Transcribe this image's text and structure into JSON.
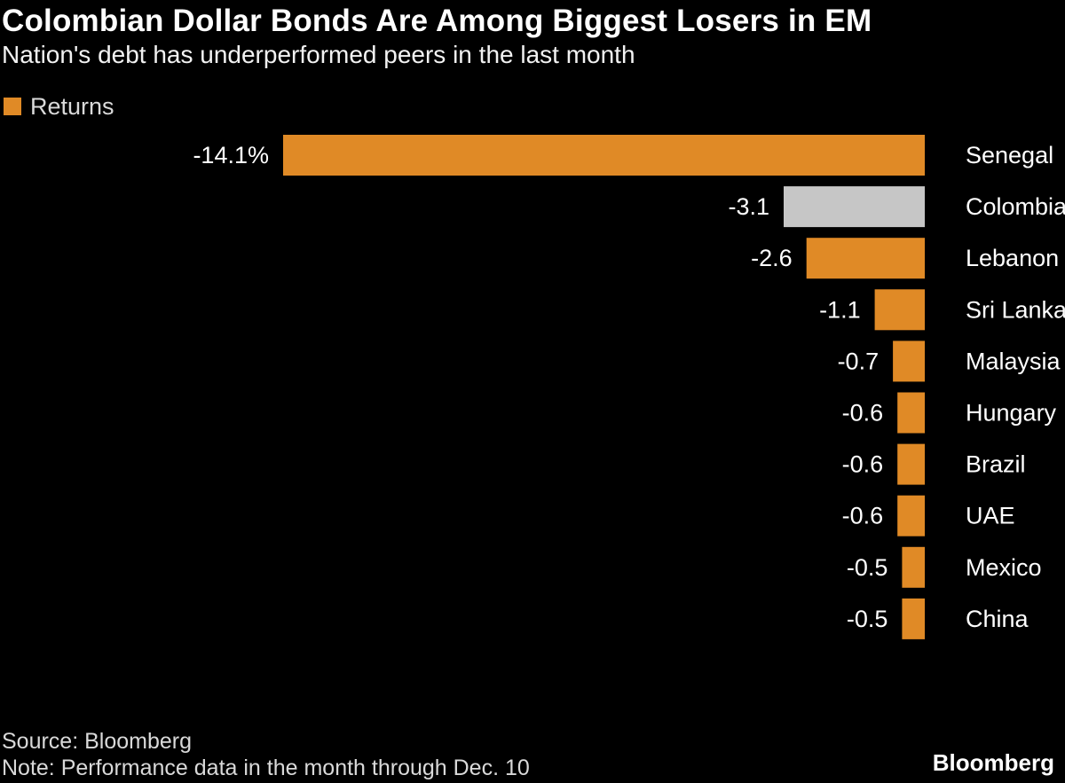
{
  "chart_data": {
    "type": "bar",
    "orientation": "horizontal",
    "title": "Colombian Dollar Bonds Are Among Biggest Losers in EM",
    "subtitle": "Nation's debt has underperformed peers in the last month",
    "legend": {
      "label": "Returns",
      "placement": "top-left"
    },
    "categories": [
      "Senegal",
      "Colombia",
      "Lebanon",
      "Sri Lanka",
      "Malaysia",
      "Hungary",
      "Brazil",
      "UAE",
      "Mexico",
      "China"
    ],
    "series": [
      {
        "name": "Returns",
        "values": [
          -14.1,
          -3.1,
          -2.6,
          -1.1,
          -0.7,
          -0.6,
          -0.6,
          -0.6,
          -0.5,
          -0.5
        ],
        "value_labels": [
          "-14.1%",
          "-3.1",
          "-2.6",
          "-1.1",
          "-0.7",
          "-0.6",
          "-0.6",
          "-0.6",
          "-0.5",
          "-0.5"
        ]
      }
    ],
    "highlight_category": "Colombia",
    "colors": {
      "bar": "#e08a26",
      "highlight": "#c6c6c6",
      "background": "#000000",
      "text": "#ffffff"
    },
    "grid": false,
    "axes_visible": false
  },
  "footer": {
    "source": "Source: Bloomberg",
    "note": "Note: Performance data in the month through Dec. 10",
    "brand": "Bloomberg"
  }
}
